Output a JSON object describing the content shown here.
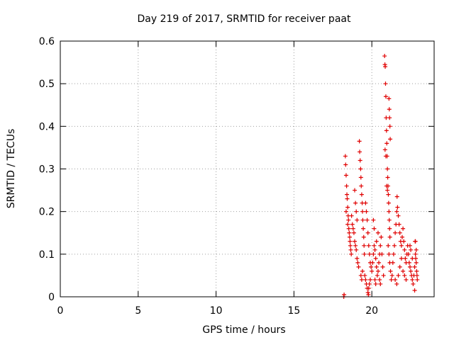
{
  "chart_data": {
    "type": "scatter",
    "title": "Day 219 of 2017, SRMTID for receiver paat",
    "xlabel": "GPS time / hours",
    "ylabel": "SRMTID / TECUs",
    "xlim": [
      0,
      24
    ],
    "ylim": [
      0,
      0.6
    ],
    "xticks": [
      0,
      5,
      10,
      15,
      20
    ],
    "xtick_labels": [
      "0",
      "5",
      "10",
      "15",
      "20"
    ],
    "yticks": [
      0,
      0.1,
      0.2,
      0.3,
      0.4,
      0.5,
      0.6
    ],
    "ytick_labels": [
      "0",
      "0.1",
      "0.2",
      "0.3",
      "0.4",
      "0.5",
      "0.6"
    ],
    "grid": true,
    "marker": "+",
    "series": [
      {
        "name": "SRMTID",
        "color": "#e00000",
        "points": [
          [
            18.2,
            0.0
          ],
          [
            18.22,
            0.005
          ],
          [
            18.3,
            0.33
          ],
          [
            18.32,
            0.31
          ],
          [
            18.35,
            0.285
          ],
          [
            18.38,
            0.26
          ],
          [
            18.4,
            0.24
          ],
          [
            18.42,
            0.23
          ],
          [
            18.45,
            0.21
          ],
          [
            18.48,
            0.19
          ],
          [
            18.5,
            0.18
          ],
          [
            18.52,
            0.16
          ],
          [
            18.55,
            0.15
          ],
          [
            18.58,
            0.14
          ],
          [
            18.6,
            0.13
          ],
          [
            18.62,
            0.12
          ],
          [
            18.65,
            0.11
          ],
          [
            18.68,
            0.1
          ],
          [
            18.35,
            0.2
          ],
          [
            18.45,
            0.17
          ],
          [
            18.7,
            0.19
          ],
          [
            18.75,
            0.17
          ],
          [
            18.8,
            0.16
          ],
          [
            18.85,
            0.15
          ],
          [
            18.9,
            0.13
          ],
          [
            18.95,
            0.12
          ],
          [
            19.0,
            0.11
          ],
          [
            19.05,
            0.09
          ],
          [
            19.1,
            0.08
          ],
          [
            19.15,
            0.07
          ],
          [
            18.9,
            0.25
          ],
          [
            18.95,
            0.22
          ],
          [
            19.0,
            0.2
          ],
          [
            19.05,
            0.18
          ],
          [
            19.2,
            0.365
          ],
          [
            19.22,
            0.34
          ],
          [
            19.25,
            0.32
          ],
          [
            19.28,
            0.3
          ],
          [
            19.3,
            0.28
          ],
          [
            19.32,
            0.26
          ],
          [
            19.35,
            0.24
          ],
          [
            19.38,
            0.22
          ],
          [
            19.4,
            0.2
          ],
          [
            19.42,
            0.18
          ],
          [
            19.45,
            0.16
          ],
          [
            19.48,
            0.14
          ],
          [
            19.5,
            0.12
          ],
          [
            19.52,
            0.1
          ],
          [
            19.3,
            0.05
          ],
          [
            19.35,
            0.04
          ],
          [
            19.4,
            0.06
          ],
          [
            19.55,
            0.05
          ],
          [
            19.6,
            0.04
          ],
          [
            19.65,
            0.03
          ],
          [
            19.7,
            0.02
          ],
          [
            19.75,
            0.01
          ],
          [
            19.78,
            0.005
          ],
          [
            19.8,
            0.02
          ],
          [
            19.85,
            0.03
          ],
          [
            19.9,
            0.04
          ],
          [
            19.6,
            0.22
          ],
          [
            19.65,
            0.2
          ],
          [
            19.7,
            0.18
          ],
          [
            19.75,
            0.15
          ],
          [
            19.8,
            0.12
          ],
          [
            19.85,
            0.1
          ],
          [
            19.9,
            0.08
          ],
          [
            19.95,
            0.07
          ],
          [
            20.0,
            0.06
          ],
          [
            20.05,
            0.08
          ],
          [
            20.1,
            0.1
          ],
          [
            20.15,
            0.12
          ],
          [
            20.2,
            0.11
          ],
          [
            20.25,
            0.09
          ],
          [
            20.3,
            0.07
          ],
          [
            20.35,
            0.05
          ],
          [
            20.4,
            0.06
          ],
          [
            20.45,
            0.08
          ],
          [
            20.5,
            0.1
          ],
          [
            20.55,
            0.12
          ],
          [
            20.6,
            0.14
          ],
          [
            20.65,
            0.1
          ],
          [
            20.7,
            0.07
          ],
          [
            20.75,
            0.05
          ],
          [
            20.1,
            0.18
          ],
          [
            20.15,
            0.16
          ],
          [
            20.2,
            0.04
          ],
          [
            20.25,
            0.03
          ],
          [
            20.3,
            0.13
          ],
          [
            20.4,
            0.15
          ],
          [
            20.5,
            0.04
          ],
          [
            20.55,
            0.03
          ],
          [
            20.82,
            0.565
          ],
          [
            20.84,
            0.545
          ],
          [
            20.86,
            0.54
          ],
          [
            20.88,
            0.5
          ],
          [
            20.9,
            0.47
          ],
          [
            20.92,
            0.42
          ],
          [
            20.94,
            0.39
          ],
          [
            20.96,
            0.36
          ],
          [
            20.98,
            0.33
          ],
          [
            21.0,
            0.3
          ],
          [
            21.02,
            0.28
          ],
          [
            21.04,
            0.26
          ],
          [
            21.06,
            0.24
          ],
          [
            21.08,
            0.22
          ],
          [
            21.1,
            0.2
          ],
          [
            21.12,
            0.18
          ],
          [
            21.14,
            0.16
          ],
          [
            21.16,
            0.14
          ],
          [
            21.1,
            0.465
          ],
          [
            21.12,
            0.44
          ],
          [
            21.14,
            0.42
          ],
          [
            21.16,
            0.4
          ],
          [
            21.18,
            0.37
          ],
          [
            20.85,
            0.345
          ],
          [
            20.9,
            0.33
          ],
          [
            20.95,
            0.26
          ],
          [
            21.0,
            0.25
          ],
          [
            21.05,
            0.12
          ],
          [
            21.1,
            0.1
          ],
          [
            21.15,
            0.08
          ],
          [
            21.2,
            0.06
          ],
          [
            21.25,
            0.04
          ],
          [
            21.3,
            0.05
          ],
          [
            21.35,
            0.08
          ],
          [
            21.4,
            0.1
          ],
          [
            21.45,
            0.12
          ],
          [
            21.5,
            0.15
          ],
          [
            21.55,
            0.17
          ],
          [
            21.6,
            0.2
          ],
          [
            21.62,
            0.235
          ],
          [
            21.65,
            0.21
          ],
          [
            21.7,
            0.19
          ],
          [
            21.75,
            0.17
          ],
          [
            21.8,
            0.15
          ],
          [
            21.85,
            0.13
          ],
          [
            21.9,
            0.12
          ],
          [
            21.95,
            0.14
          ],
          [
            22.0,
            0.16
          ],
          [
            22.05,
            0.13
          ],
          [
            22.1,
            0.11
          ],
          [
            22.15,
            0.09
          ],
          [
            22.2,
            0.08
          ],
          [
            22.25,
            0.1
          ],
          [
            22.3,
            0.12
          ],
          [
            21.5,
            0.04
          ],
          [
            21.6,
            0.03
          ],
          [
            21.7,
            0.05
          ],
          [
            21.8,
            0.07
          ],
          [
            21.9,
            0.09
          ],
          [
            22.0,
            0.06
          ],
          [
            22.1,
            0.05
          ],
          [
            22.2,
            0.04
          ],
          [
            22.35,
            0.1
          ],
          [
            22.4,
            0.08
          ],
          [
            22.45,
            0.07
          ],
          [
            22.5,
            0.06
          ],
          [
            22.55,
            0.05
          ],
          [
            22.6,
            0.04
          ],
          [
            22.65,
            0.03
          ],
          [
            22.7,
            0.05
          ],
          [
            22.75,
            0.07
          ],
          [
            22.78,
            0.13
          ],
          [
            22.8,
            0.1
          ],
          [
            22.82,
            0.09
          ],
          [
            22.85,
            0.08
          ],
          [
            22.88,
            0.06
          ],
          [
            22.9,
            0.05
          ],
          [
            22.92,
            0.04
          ],
          [
            22.75,
            0.015
          ],
          [
            22.6,
            0.09
          ],
          [
            22.5,
            0.11
          ],
          [
            22.45,
            0.12
          ],
          [
            22.8,
            0.13
          ],
          [
            22.85,
            0.11
          ]
        ]
      }
    ]
  }
}
